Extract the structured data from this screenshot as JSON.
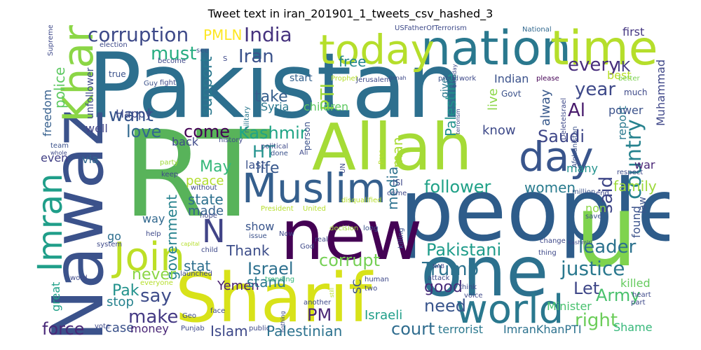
{
  "title": "Tweet text in iran_201901_1_tweets_csv_hashed_3",
  "words": [
    {
      "text": "Pakistan",
      "color": "#2d6f8e"
    },
    {
      "text": "RT",
      "color": "#58b35a"
    },
    {
      "text": "people",
      "color": "#2e5c8a"
    },
    {
      "text": "Nawaz",
      "color": "#3b528b"
    },
    {
      "text": "Sharif",
      "color": "#d8e219"
    },
    {
      "text": "u",
      "color": "#7fd34e"
    },
    {
      "text": "one",
      "color": "#2c718e"
    },
    {
      "text": "new",
      "color": "#440154"
    },
    {
      "text": "Allah",
      "color": "#a5db36"
    },
    {
      "text": "nation",
      "color": "#2a788e"
    },
    {
      "text": "time",
      "color": "#b5de2b"
    },
    {
      "text": "Khan",
      "color": "#8bd646"
    },
    {
      "text": "Muslim",
      "color": "#355f8d"
    },
    {
      "text": "world",
      "color": "#2a788e"
    },
    {
      "text": "today",
      "color": "#b5de2b"
    },
    {
      "text": "day",
      "color": "#39558c"
    },
    {
      "text": "Join",
      "color": "#bddf26"
    },
    {
      "text": "Imran",
      "color": "#1f9e89"
    },
    {
      "text": "N",
      "color": "#414487"
    },
    {
      "text": "corruption",
      "color": "#3e4a89"
    },
    {
      "text": "India",
      "color": "#46337e"
    },
    {
      "text": "country",
      "color": "#26828e"
    },
    {
      "text": "PMLN",
      "color": "#fde725"
    },
    {
      "text": "must",
      "color": "#27ad81"
    },
    {
      "text": "Iran",
      "color": "#3b528b"
    },
    {
      "text": "PTI",
      "color": "#a0da39"
    },
    {
      "text": "support",
      "color": "#2a788e"
    },
    {
      "text": "every",
      "color": "#472d7b"
    },
    {
      "text": "year",
      "color": "#3e4989"
    },
    {
      "text": "IK",
      "color": "#443a83"
    },
    {
      "text": "Al",
      "color": "#481a6c"
    },
    {
      "text": "want",
      "color": "#39568c"
    },
    {
      "text": "love",
      "color": "#31688e"
    },
    {
      "text": "come",
      "color": "#440154"
    },
    {
      "text": "Kashmir",
      "color": "#20a486"
    },
    {
      "text": "Saudi",
      "color": "#3f4788"
    },
    {
      "text": "HT",
      "color": "#21918c"
    },
    {
      "text": "May",
      "color": "#35b779"
    },
    {
      "text": "life",
      "color": "#38588c"
    },
    {
      "text": "peace",
      "color": "#b2dd2d"
    },
    {
      "text": "follower",
      "color": "#1fa187"
    },
    {
      "text": "said",
      "color": "#3f4788"
    },
    {
      "text": "government",
      "color": "#26828e"
    },
    {
      "text": "state",
      "color": "#2d708e"
    },
    {
      "text": "made",
      "color": "#34618d"
    },
    {
      "text": "women",
      "color": "#297b8e"
    },
    {
      "text": "family",
      "color": "#9dd93b"
    },
    {
      "text": "Pakistani",
      "color": "#1e9b8a"
    },
    {
      "text": "leader",
      "color": "#2c728e"
    },
    {
      "text": "Israel",
      "color": "#2d708e"
    },
    {
      "text": "corrupt",
      "color": "#75d054"
    },
    {
      "text": "Trump",
      "color": "#2c728e"
    },
    {
      "text": "justice",
      "color": "#2a788e"
    },
    {
      "text": "Thank",
      "color": "#3d4e8a"
    },
    {
      "text": "stat",
      "color": "#2e6f8e"
    },
    {
      "text": "never",
      "color": "#8bd646"
    },
    {
      "text": "say",
      "color": "#3e4c8a"
    },
    {
      "text": "Yemen",
      "color": "#481f70"
    },
    {
      "text": "stand",
      "color": "#2a788e"
    },
    {
      "text": "good",
      "color": "#472c7a"
    },
    {
      "text": "Let",
      "color": "#3f4788"
    },
    {
      "text": "Army",
      "color": "#4ac16d"
    },
    {
      "text": "right",
      "color": "#6ccd5a"
    },
    {
      "text": "make",
      "color": "#443983"
    },
    {
      "text": "need",
      "color": "#39558c"
    },
    {
      "text": "PM",
      "color": "#482475"
    },
    {
      "text": "court",
      "color": "#2f6c8e"
    },
    {
      "text": "force",
      "color": "#482878"
    },
    {
      "text": "Islam",
      "color": "#3e4989"
    },
    {
      "text": "Palestinian",
      "color": "#2c728e"
    },
    {
      "text": "Israeli",
      "color": "#1f9e89"
    },
    {
      "text": "Pak",
      "color": "#21918c"
    },
    {
      "text": "stop",
      "color": "#26828e"
    },
    {
      "text": "case",
      "color": "#3b528b"
    },
    {
      "text": "money",
      "color": "#482475"
    },
    {
      "text": "great",
      "color": "#1fa088"
    },
    {
      "text": "police",
      "color": "#5ec962"
    },
    {
      "text": "freedom",
      "color": "#355f8d"
    },
    {
      "text": "Palestine",
      "color": "#21918c"
    },
    {
      "text": "man",
      "color": "#a8db34"
    },
    {
      "text": "media",
      "color": "#2c718e"
    },
    {
      "text": "free",
      "color": "#24878e"
    },
    {
      "text": "take",
      "color": "#355f8d"
    },
    {
      "text": "children",
      "color": "#5ec962"
    },
    {
      "text": "Syria",
      "color": "#2a788e"
    },
    {
      "text": "Happy",
      "color": "#3e4a89"
    },
    {
      "text": "know",
      "color": "#3e4a89"
    },
    {
      "text": "live",
      "color": "#8bd646"
    },
    {
      "text": "alway",
      "color": "#38598c"
    },
    {
      "text": "report",
      "color": "#2a788e"
    },
    {
      "text": "war",
      "color": "#482475"
    },
    {
      "text": "power",
      "color": "#3b528b"
    },
    {
      "text": "Muhammad",
      "color": "#3f4788"
    },
    {
      "text": "killed",
      "color": "#65cb5e"
    },
    {
      "text": "Minister",
      "color": "#48c16e"
    },
    {
      "text": "Shame",
      "color": "#35b779"
    },
    {
      "text": "terrorist",
      "color": "#2a788e"
    },
    {
      "text": "ImranKhanPTI",
      "color": "#2c728e"
    },
    {
      "text": "SC",
      "color": "#3b528b"
    },
    {
      "text": "first",
      "color": "#453781"
    },
    {
      "text": "best",
      "color": "#b8de29"
    },
    {
      "text": "Indian",
      "color": "#3b528b"
    },
    {
      "text": "well",
      "color": "#414487"
    },
    {
      "text": "back",
      "color": "#3e4989"
    },
    {
      "text": "via",
      "color": "#31688e"
    },
    {
      "text": "even",
      "color": "#424086"
    },
    {
      "text": "way",
      "color": "#31688e"
    },
    {
      "text": "go",
      "color": "#2e6e8e"
    },
    {
      "text": "last",
      "color": "#3b528b"
    },
    {
      "text": "show",
      "color": "#39558c"
    },
    {
      "text": "many",
      "color": "#21918c"
    },
    {
      "text": "non",
      "color": "#8bd646"
    },
    {
      "text": "found",
      "color": "#3b528b"
    },
    {
      "text": "law",
      "color": "#3b528b"
    },
    {
      "text": "start",
      "color": "#34618d"
    },
    {
      "text": "give",
      "color": "#2a788e"
    },
    {
      "text": "unfollower",
      "color": "#3e4989"
    },
    {
      "text": "USFatherOfTerrorism",
      "color": "#3e4a89"
    },
    {
      "text": "National",
      "color": "#31688e"
    },
    {
      "text": "trending",
      "color": "#35b779"
    },
    {
      "text": "election",
      "color": "#3e4989"
    },
    {
      "text": "Supreme",
      "color": "#3e4989"
    },
    {
      "text": "Prophet",
      "color": "#b5de2b"
    },
    {
      "text": "Jerusalem",
      "color": "#3e4989"
    },
    {
      "text": "Govt",
      "color": "#3b528b"
    },
    {
      "text": "DeleteIsrael",
      "color": "#3e4989"
    },
    {
      "text": "much",
      "color": "#3e4989"
    },
    {
      "text": "better",
      "color": "#7ad151"
    },
    {
      "text": "please",
      "color": "#440154"
    },
    {
      "text": "work",
      "color": "#3e4989"
    },
    {
      "text": "proud",
      "color": "#3b528b"
    },
    {
      "text": "true",
      "color": "#3b528b"
    },
    {
      "text": "become",
      "color": "#3e4989"
    },
    {
      "text": "see",
      "color": "#3b528b"
    },
    {
      "text": "Guy",
      "color": "#3b528b"
    },
    {
      "text": "fight",
      "color": "#3e4989"
    },
    {
      "text": "military",
      "color": "#2a788e"
    },
    {
      "text": "history",
      "color": "#3e4989"
    },
    {
      "text": "political",
      "color": "#3e4989"
    },
    {
      "text": "team",
      "color": "#3b528b"
    },
    {
      "text": "whole",
      "color": "#3e4989"
    },
    {
      "text": "done",
      "color": "#3b528b"
    },
    {
      "text": "Ali",
      "color": "#3e4989"
    },
    {
      "text": "UN",
      "color": "#3e4989"
    },
    {
      "text": "person",
      "color": "#3b528b"
    },
    {
      "text": "Afghanistan",
      "color": "#3b528b"
    },
    {
      "text": "respect",
      "color": "#3e4989"
    },
    {
      "text": "keep",
      "color": "#3e4989"
    },
    {
      "text": "party",
      "color": "#a0da39"
    },
    {
      "text": "without",
      "color": "#3e4989"
    },
    {
      "text": "disqualified",
      "color": "#b5de2b"
    },
    {
      "text": "million",
      "color": "#3b528b"
    },
    {
      "text": "end",
      "color": "#3e4989"
    },
    {
      "text": "ISI",
      "color": "#3e4989"
    },
    {
      "text": "crime",
      "color": "#3e4989"
    },
    {
      "text": "President",
      "color": "#b5de2b"
    },
    {
      "text": "United",
      "color": "#b5de2b"
    },
    {
      "text": "decision",
      "color": "#a0da39"
    },
    {
      "text": "long",
      "color": "#3b528b"
    },
    {
      "text": "hope",
      "color": "#3e4989"
    },
    {
      "text": "issue",
      "color": "#3b528b"
    },
    {
      "text": "save",
      "color": "#3b528b"
    },
    {
      "text": "help",
      "color": "#3e4989"
    },
    {
      "text": "Now",
      "color": "#3e4989"
    },
    {
      "text": "God",
      "color": "#3e4989"
    },
    {
      "text": "real",
      "color": "#3e4989"
    },
    {
      "text": "killing",
      "color": "#3b528b"
    },
    {
      "text": "change",
      "color": "#3e4989"
    },
    {
      "text": "Kashmiri",
      "color": "#3e4989"
    },
    {
      "text": "thing",
      "color": "#3e4989"
    },
    {
      "text": "system",
      "color": "#3e4989"
    },
    {
      "text": "capital",
      "color": "#b5de2b"
    },
    {
      "text": "child",
      "color": "#3e4989"
    },
    {
      "text": "attack",
      "color": "#3e4989"
    },
    {
      "text": "human",
      "color": "#3e4989"
    },
    {
      "text": "launched",
      "color": "#3e4989"
    },
    {
      "text": "two",
      "color": "#3e4989"
    },
    {
      "text": "word",
      "color": "#3e4989"
    },
    {
      "text": "think",
      "color": "#3e4989"
    },
    {
      "text": "voice",
      "color": "#3e4989"
    },
    {
      "text": "heart",
      "color": "#3e4989"
    },
    {
      "text": "part",
      "color": "#3e4989"
    },
    {
      "text": "everyone",
      "color": "#b5de2b"
    },
    {
      "text": "face",
      "color": "#3e4989"
    },
    {
      "text": "Geo",
      "color": "#3e4989"
    },
    {
      "text": "another",
      "color": "#3e4989"
    },
    {
      "text": "vote",
      "color": "#3e4989"
    },
    {
      "text": "Punjab",
      "color": "#3e4989"
    },
    {
      "text": "public",
      "color": "#3e4989"
    },
    {
      "text": "Jinnah",
      "color": "#3e4989"
    },
    {
      "text": "birthday",
      "color": "#3e4989"
    },
    {
      "text": "terrorism",
      "color": "#3e4989"
    },
    {
      "text": "NAB",
      "color": "#3e4989"
    },
    {
      "text": "still",
      "color": "#b5de2b"
    },
    {
      "text": "nothing",
      "color": "#3e4989"
    },
    {
      "text": "S",
      "color": "#3e4989"
    },
    {
      "text": "Pres",
      "color": "#b5de2b"
    }
  ]
}
